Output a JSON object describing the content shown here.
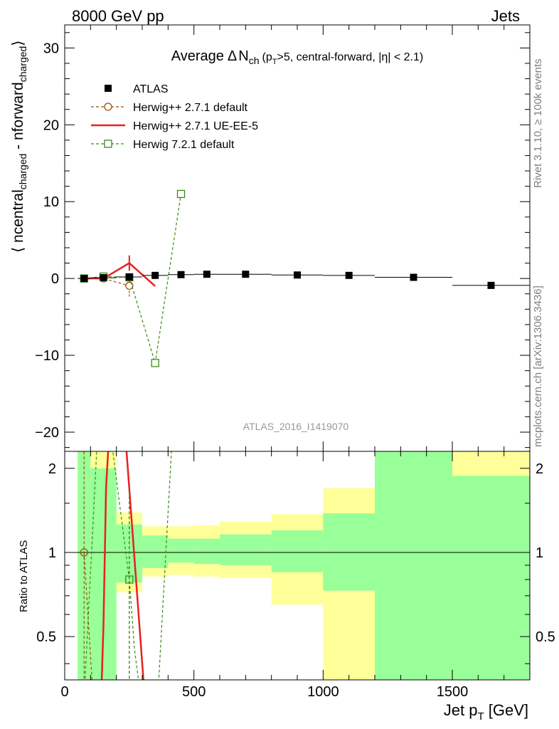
{
  "header": {
    "left": "8000 GeV pp",
    "right": "Jets"
  },
  "side_labels": {
    "rivet": "Rivet 3.1.10, ≥ 100k events",
    "mcplots": "mcplots.cern.ch [arXiv:1306.3436]"
  },
  "chart_data": {
    "type": "scatter",
    "title": {
      "prefix": "Average",
      "delta": "Δ",
      "n": "N",
      "n_sub": "ch",
      "p1": "(p",
      "p_sub": "T",
      "p2": ">5, central-forward, |η| < 2.1)"
    },
    "analysis_label": "ATLAS_2016_I1419070",
    "ylabel": {
      "open": "⟨ n",
      "s1": "central",
      "s1_sub": "charged",
      "minus": " - n",
      "s2": "forward",
      "s2_sub": "charged",
      "close": "⟩"
    },
    "ratio_ylabel": "Ratio to ATLAS",
    "xlabel": {
      "main": "Jet p",
      "sub": "T",
      "unit": " [GeV]"
    },
    "xlim": [
      0,
      1800
    ],
    "ylim": [
      -22.5,
      33
    ],
    "ratio_ylim": [
      0.35,
      2.3
    ],
    "ratio_scale": "log",
    "x_ticks": [
      0,
      500,
      1000,
      1500
    ],
    "x_tick_labels": [
      "0",
      "500",
      "1000",
      "1500"
    ],
    "y_ticks": [
      -20,
      -10,
      0,
      10,
      20,
      30
    ],
    "y_tick_labels": [
      "−20",
      "−10",
      "0",
      "10",
      "20",
      "30"
    ],
    "ratio_ticks": [
      0.5,
      1,
      2
    ],
    "ratio_tick_labels": [
      "0.5",
      "1",
      "2"
    ],
    "legend_position": "top-left",
    "series": [
      {
        "name": "ATLAS",
        "style": "marker",
        "color": "#000000",
        "x": [
          75,
          150,
          250,
          350,
          450,
          550,
          700,
          900,
          1100,
          1350,
          1650
        ],
        "xlow": [
          50,
          100,
          200,
          300,
          400,
          500,
          600,
          800,
          1000,
          1200,
          1500
        ],
        "xhigh": [
          100,
          200,
          300,
          400,
          500,
          600,
          800,
          1000,
          1200,
          1500,
          1800
        ],
        "y": [
          0.0,
          0.1,
          0.2,
          0.4,
          0.5,
          0.55,
          0.55,
          0.45,
          0.4,
          0.15,
          -0.9
        ]
      },
      {
        "name": "Herwig++ 2.7.1 default",
        "style": "dashed-circle",
        "color": "#a05000",
        "x": [
          75,
          150,
          250
        ],
        "y": [
          0.0,
          0.0,
          -0.95
        ],
        "yerr": [
          0.2,
          0.3,
          1.4
        ]
      },
      {
        "name": "Herwig++ 2.7.1 UE-EE-5",
        "style": "solid-line",
        "color": "#e8211f",
        "x": [
          75,
          150,
          250,
          350
        ],
        "y": [
          0.0,
          0.0,
          2.0,
          -1.0
        ],
        "yerr": [
          0.1,
          0.2,
          1.0,
          0
        ]
      },
      {
        "name": "Herwig 7.2.1 default",
        "style": "dashed-square",
        "color": "#3a8a18",
        "x": [
          75,
          150,
          250,
          350,
          450
        ],
        "y": [
          0.0,
          0.25,
          0.15,
          -11.0,
          11.0
        ],
        "yerr": [
          0.2,
          0.2,
          0.3,
          0,
          0
        ]
      }
    ],
    "ratio_bands": [
      {
        "xlow": 50,
        "xhigh": 100,
        "yellow": [
          0.3,
          2.4
        ],
        "green": [
          0.3,
          2.4
        ]
      },
      {
        "xlow": 100,
        "xhigh": 200,
        "yellow": [
          0.3,
          2.4
        ],
        "green": [
          0.3,
          2.0
        ]
      },
      {
        "xlow": 200,
        "xhigh": 300,
        "yellow": [
          0.72,
          1.39
        ],
        "green": [
          0.78,
          1.26
        ]
      },
      {
        "xlow": 300,
        "xhigh": 400,
        "yellow": [
          0.82,
          1.24
        ],
        "green": [
          0.88,
          1.15
        ]
      },
      {
        "xlow": 400,
        "xhigh": 500,
        "yellow": [
          0.83,
          1.24
        ],
        "green": [
          0.92,
          1.12
        ]
      },
      {
        "xlow": 500,
        "xhigh": 600,
        "yellow": [
          0.82,
          1.25
        ],
        "green": [
          0.91,
          1.12
        ]
      },
      {
        "xlow": 600,
        "xhigh": 800,
        "yellow": [
          0.81,
          1.29
        ],
        "green": [
          0.9,
          1.16
        ]
      },
      {
        "xlow": 800,
        "xhigh": 1000,
        "yellow": [
          0.65,
          1.37
        ],
        "green": [
          0.85,
          1.2
        ]
      },
      {
        "xlow": 1000,
        "xhigh": 1200,
        "yellow": [
          0.3,
          1.7
        ],
        "green": [
          0.73,
          1.38
        ]
      },
      {
        "xlow": 1200,
        "xhigh": 1500,
        "yellow": [
          0.3,
          2.4
        ],
        "green": [
          0.3,
          2.4
        ]
      },
      {
        "xlow": 1500,
        "xhigh": 1800,
        "yellow": [
          0.3,
          2.4
        ],
        "green": [
          0.3,
          1.88
        ]
      }
    ],
    "ratio_series": [
      {
        "name": "Herwig++ 2.7.1 default",
        "color": "#a05000",
        "style": "dashed-circle",
        "x": [
          75,
          110,
          150,
          250
        ],
        "y": [
          1.0,
          0.3,
          0.2,
          0.3
        ],
        "marker_x": 75,
        "marker_y": 1.0,
        "err_x": [
          75,
          250
        ],
        "err_lo": [
          0.3,
          0.3
        ],
        "err_hi": [
          2.4,
          1.7
        ]
      },
      {
        "name": "Herwig++ 2.7.1 UE-EE-5",
        "color": "#e8211f",
        "style": "solid-line",
        "x": [
          135,
          150,
          160,
          175,
          190,
          230,
          310,
          335
        ],
        "y": [
          0.2,
          0.55,
          1.7,
          3.0,
          3.0,
          3.0,
          0.3,
          0.2
        ]
      },
      {
        "name": "Herwig 7.2.1 default",
        "color": "#3a8a18",
        "style": "dashed-square",
        "x": [
          75,
          130,
          170,
          250,
          270,
          320,
          360,
          420
        ],
        "y": [
          0.3,
          3.0,
          3.0,
          0.8,
          0.45,
          0.2,
          0.3,
          3.0
        ],
        "marker_x": 250,
        "marker_y": 0.8,
        "err_x": [
          250
        ],
        "err_lo": [
          0.3
        ],
        "err_hi": [
          1.7
        ]
      }
    ]
  }
}
